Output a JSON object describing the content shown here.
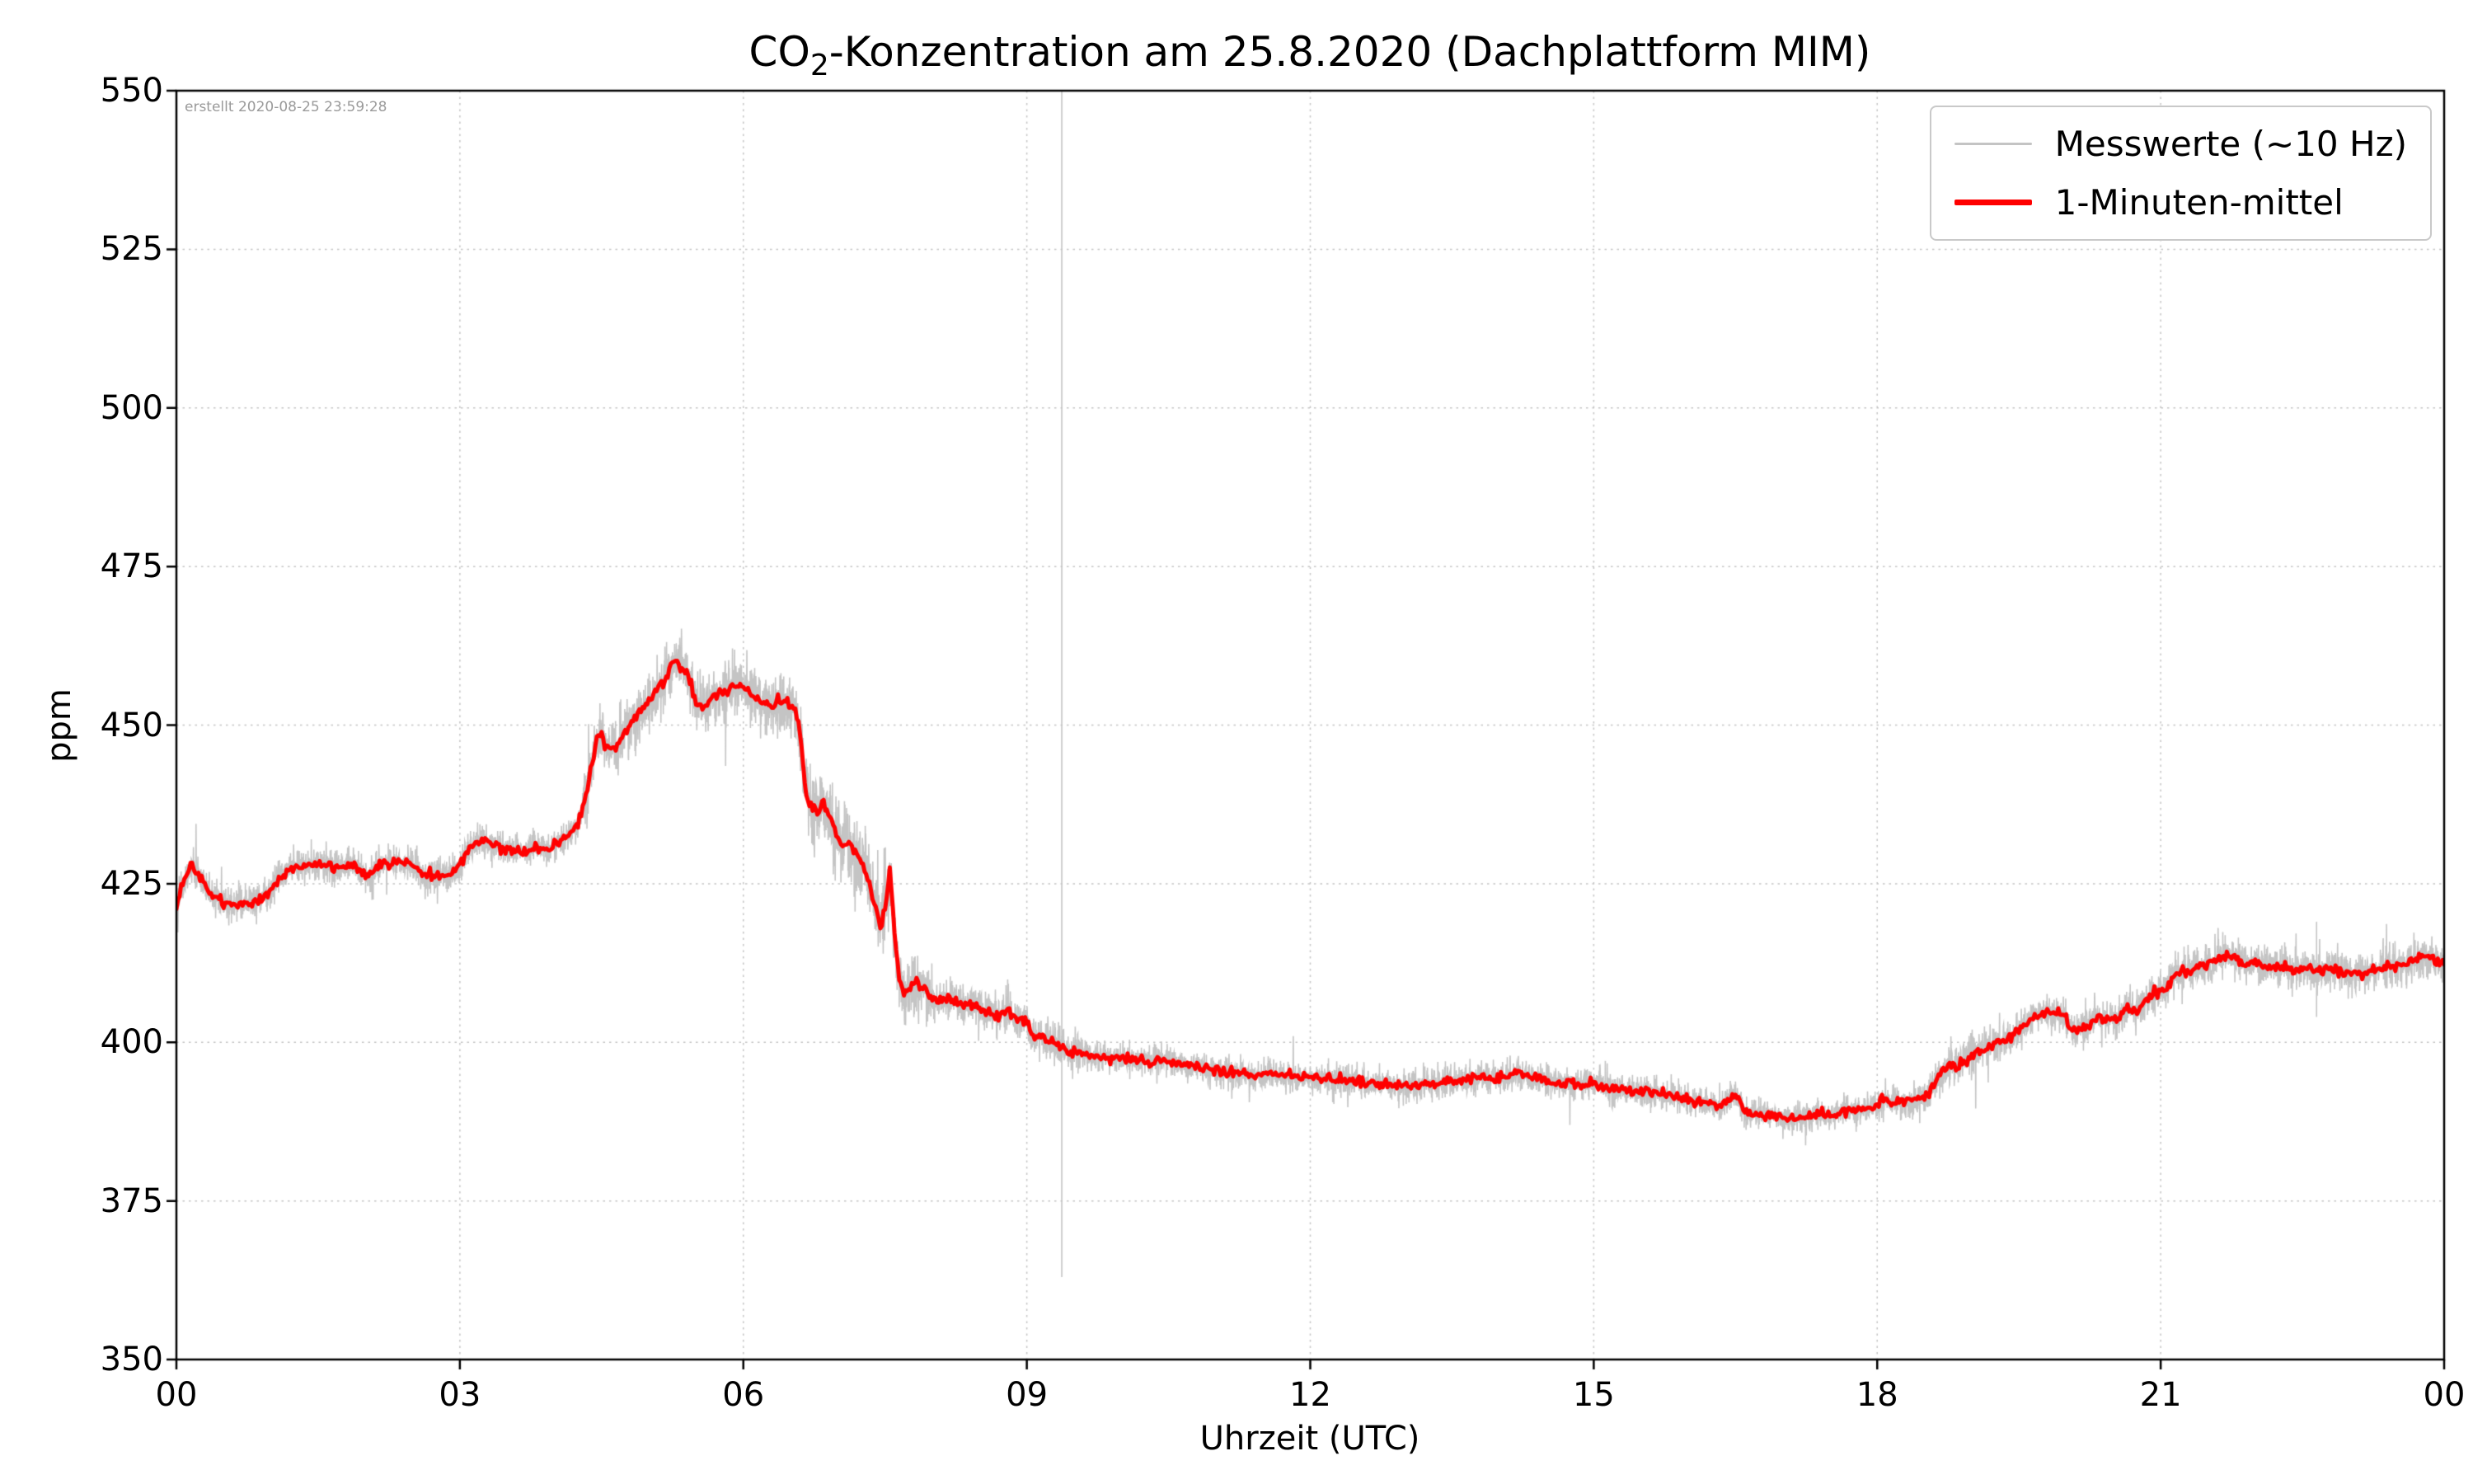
{
  "figure": {
    "created_note": "erstellt 2020-08-25 23:59:28",
    "background": "#ffffff"
  },
  "chart_data": {
    "type": "line",
    "title": {
      "prefix": "CO",
      "sub": "2",
      "rest": "-Konzentration am 25.8.2020 (Dachplattform MIM)"
    },
    "xlabel": "Uhrzeit (UTC)",
    "ylabel": "ppm",
    "x_unit": "hours",
    "xlim": [
      0,
      24
    ],
    "ylim": [
      350,
      550
    ],
    "x_ticks": {
      "positions": [
        0,
        3,
        6,
        9,
        12,
        15,
        18,
        21,
        24
      ],
      "labels": [
        "00",
        "03",
        "06",
        "09",
        "12",
        "15",
        "18",
        "21",
        "00"
      ]
    },
    "y_ticks": {
      "positions": [
        350,
        375,
        400,
        425,
        450,
        475,
        500,
        525,
        550
      ],
      "labels": [
        "350",
        "375",
        "400",
        "425",
        "450",
        "475",
        "500",
        "525",
        "550"
      ]
    },
    "grid": {
      "visible": true,
      "style": "dotted",
      "color": "#c4c4c4"
    },
    "legend": {
      "position": "upper right",
      "entries": [
        {
          "label": "Messwerte (~10 Hz)",
          "color": "#c4c4c4",
          "sample_height": 3
        },
        {
          "label": "1-Minuten-mittel",
          "color": "#ff0000",
          "sample_height": 7
        }
      ]
    },
    "series": [
      {
        "name": "1-Minuten-mittel",
        "color": "#ff0000",
        "linewidth": 5,
        "points": [
          [
            0.0,
            421
          ],
          [
            0.05,
            424
          ],
          [
            0.15,
            428
          ],
          [
            0.25,
            426
          ],
          [
            0.35,
            423.5
          ],
          [
            0.5,
            422
          ],
          [
            0.65,
            421.5
          ],
          [
            0.8,
            422
          ],
          [
            0.95,
            423
          ],
          [
            1.1,
            426
          ],
          [
            1.25,
            427.5
          ],
          [
            1.4,
            428
          ],
          [
            1.55,
            428
          ],
          [
            1.7,
            427.5
          ],
          [
            1.85,
            428
          ],
          [
            2.0,
            426.5
          ],
          [
            2.1,
            427
          ],
          [
            2.2,
            428.5
          ],
          [
            2.35,
            428.5
          ],
          [
            2.5,
            428
          ],
          [
            2.6,
            426.5
          ],
          [
            2.75,
            426
          ],
          [
            2.9,
            426.5
          ],
          [
            3.0,
            428
          ],
          [
            3.1,
            430.5
          ],
          [
            3.2,
            431.5
          ],
          [
            3.35,
            431
          ],
          [
            3.5,
            430.5
          ],
          [
            3.65,
            430
          ],
          [
            3.8,
            430.5
          ],
          [
            3.95,
            430.5
          ],
          [
            4.1,
            432
          ],
          [
            4.25,
            434
          ],
          [
            4.35,
            440
          ],
          [
            4.45,
            448
          ],
          [
            4.5,
            449
          ],
          [
            4.55,
            446.5
          ],
          [
            4.65,
            446.5
          ],
          [
            4.75,
            449
          ],
          [
            4.85,
            451
          ],
          [
            4.95,
            452.5
          ],
          [
            5.05,
            454.5
          ],
          [
            5.15,
            457
          ],
          [
            5.25,
            459.5
          ],
          [
            5.3,
            460
          ],
          [
            5.4,
            458
          ],
          [
            5.5,
            454
          ],
          [
            5.55,
            453
          ],
          [
            5.65,
            454
          ],
          [
            5.75,
            455
          ],
          [
            5.85,
            455.5
          ],
          [
            5.95,
            456.5
          ],
          [
            6.05,
            455.5
          ],
          [
            6.15,
            454
          ],
          [
            6.25,
            453
          ],
          [
            6.35,
            453.5
          ],
          [
            6.45,
            453.5
          ],
          [
            6.55,
            452.5
          ],
          [
            6.6,
            449
          ],
          [
            6.65,
            441
          ],
          [
            6.7,
            437.5
          ],
          [
            6.8,
            436.5
          ],
          [
            6.85,
            438
          ],
          [
            6.95,
            434
          ],
          [
            7.05,
            431
          ],
          [
            7.1,
            432
          ],
          [
            7.2,
            429.5
          ],
          [
            7.3,
            427
          ],
          [
            7.4,
            421
          ],
          [
            7.45,
            418
          ],
          [
            7.5,
            421
          ],
          [
            7.55,
            427
          ],
          [
            7.6,
            417
          ],
          [
            7.65,
            410
          ],
          [
            7.7,
            407.5
          ],
          [
            7.8,
            409
          ],
          [
            7.9,
            408.5
          ],
          [
            8.0,
            407
          ],
          [
            8.1,
            406.5
          ],
          [
            8.2,
            407
          ],
          [
            8.3,
            406
          ],
          [
            8.45,
            405.5
          ],
          [
            8.6,
            404.5
          ],
          [
            8.7,
            404
          ],
          [
            8.8,
            405
          ],
          [
            8.9,
            403.5
          ],
          [
            9.0,
            403.5
          ],
          [
            9.05,
            401.5
          ],
          [
            9.15,
            401
          ],
          [
            9.25,
            400
          ],
          [
            9.35,
            399.5
          ],
          [
            9.45,
            398.5
          ],
          [
            9.55,
            398.5
          ],
          [
            9.7,
            398
          ],
          [
            9.85,
            397.5
          ],
          [
            10.0,
            397.5
          ],
          [
            10.2,
            397
          ],
          [
            10.4,
            397.5
          ],
          [
            10.6,
            396.5
          ],
          [
            10.8,
            396
          ],
          [
            11.0,
            395.5
          ],
          [
            11.2,
            395
          ],
          [
            11.4,
            394.5
          ],
          [
            11.6,
            395
          ],
          [
            11.8,
            394.5
          ],
          [
            12.0,
            394.5
          ],
          [
            12.2,
            394
          ],
          [
            12.4,
            394
          ],
          [
            12.6,
            393.5
          ],
          [
            12.8,
            393.5
          ],
          [
            13.0,
            393
          ],
          [
            13.2,
            393.5
          ],
          [
            13.4,
            393.5
          ],
          [
            13.6,
            394
          ],
          [
            13.8,
            394.5
          ],
          [
            14.0,
            394.5
          ],
          [
            14.2,
            395
          ],
          [
            14.4,
            394.5
          ],
          [
            14.6,
            393.5
          ],
          [
            14.8,
            393.5
          ],
          [
            15.0,
            393.5
          ],
          [
            15.2,
            392.5
          ],
          [
            15.4,
            392.5
          ],
          [
            15.6,
            392
          ],
          [
            15.8,
            391.5
          ],
          [
            16.0,
            391
          ],
          [
            16.2,
            390.5
          ],
          [
            16.35,
            390
          ],
          [
            16.5,
            392
          ],
          [
            16.6,
            389
          ],
          [
            16.75,
            388.5
          ],
          [
            16.9,
            388.5
          ],
          [
            17.05,
            388
          ],
          [
            17.2,
            388
          ],
          [
            17.35,
            388.5
          ],
          [
            17.5,
            388.5
          ],
          [
            17.65,
            389
          ],
          [
            17.8,
            389.5
          ],
          [
            17.95,
            389.5
          ],
          [
            18.05,
            391
          ],
          [
            18.15,
            390.5
          ],
          [
            18.3,
            390.5
          ],
          [
            18.45,
            391
          ],
          [
            18.55,
            392
          ],
          [
            18.65,
            394.5
          ],
          [
            18.75,
            396.5
          ],
          [
            18.85,
            396
          ],
          [
            18.95,
            397.5
          ],
          [
            19.05,
            398.5
          ],
          [
            19.15,
            399
          ],
          [
            19.3,
            400
          ],
          [
            19.45,
            401
          ],
          [
            19.55,
            402.5
          ],
          [
            19.65,
            404
          ],
          [
            19.75,
            405
          ],
          [
            19.85,
            404.5
          ],
          [
            19.95,
            404.5
          ],
          [
            20.05,
            402
          ],
          [
            20.15,
            402
          ],
          [
            20.25,
            403
          ],
          [
            20.35,
            404
          ],
          [
            20.45,
            403.5
          ],
          [
            20.55,
            404
          ],
          [
            20.65,
            405.5
          ],
          [
            20.75,
            405
          ],
          [
            20.85,
            406.5
          ],
          [
            20.95,
            407.5
          ],
          [
            21.05,
            408.5
          ],
          [
            21.15,
            410.5
          ],
          [
            21.25,
            411
          ],
          [
            21.35,
            411.5
          ],
          [
            21.45,
            412
          ],
          [
            21.55,
            412.5
          ],
          [
            21.65,
            413.5
          ],
          [
            21.7,
            414
          ],
          [
            21.8,
            413
          ],
          [
            21.9,
            412.5
          ],
          [
            22.0,
            412.5
          ],
          [
            22.2,
            412
          ],
          [
            22.4,
            411.5
          ],
          [
            22.6,
            411.5
          ],
          [
            22.8,
            411.5
          ],
          [
            23.0,
            411
          ],
          [
            23.1,
            410.5
          ],
          [
            23.2,
            411
          ],
          [
            23.4,
            412
          ],
          [
            23.6,
            412.5
          ],
          [
            23.8,
            413.5
          ],
          [
            23.9,
            413
          ],
          [
            24.0,
            412.5
          ]
        ]
      },
      {
        "name": "Messwerte (~10 Hz)",
        "color": "#c4c4c4",
        "linewidth": 1.6,
        "derived_from": "1-Minuten-mittel",
        "noise_seed": 42,
        "noise_profile": [
          [
            0.0,
            3.2,
            1.4
          ],
          [
            3.2,
            4.3,
            1.2
          ],
          [
            4.3,
            6.55,
            2.2
          ],
          [
            6.55,
            8.0,
            3.0
          ],
          [
            8.0,
            9.6,
            1.6
          ],
          [
            9.6,
            18.4,
            1.2
          ],
          [
            18.4,
            19.2,
            1.6
          ],
          [
            19.2,
            21.0,
            1.4
          ],
          [
            21.0,
            24.0,
            1.6
          ]
        ],
        "spikes": [
          {
            "x": 9.37,
            "y_from": 363,
            "y_to": 550
          },
          {
            "x": 22.65,
            "y_from": 404,
            "y_to": 419
          }
        ]
      }
    ]
  }
}
